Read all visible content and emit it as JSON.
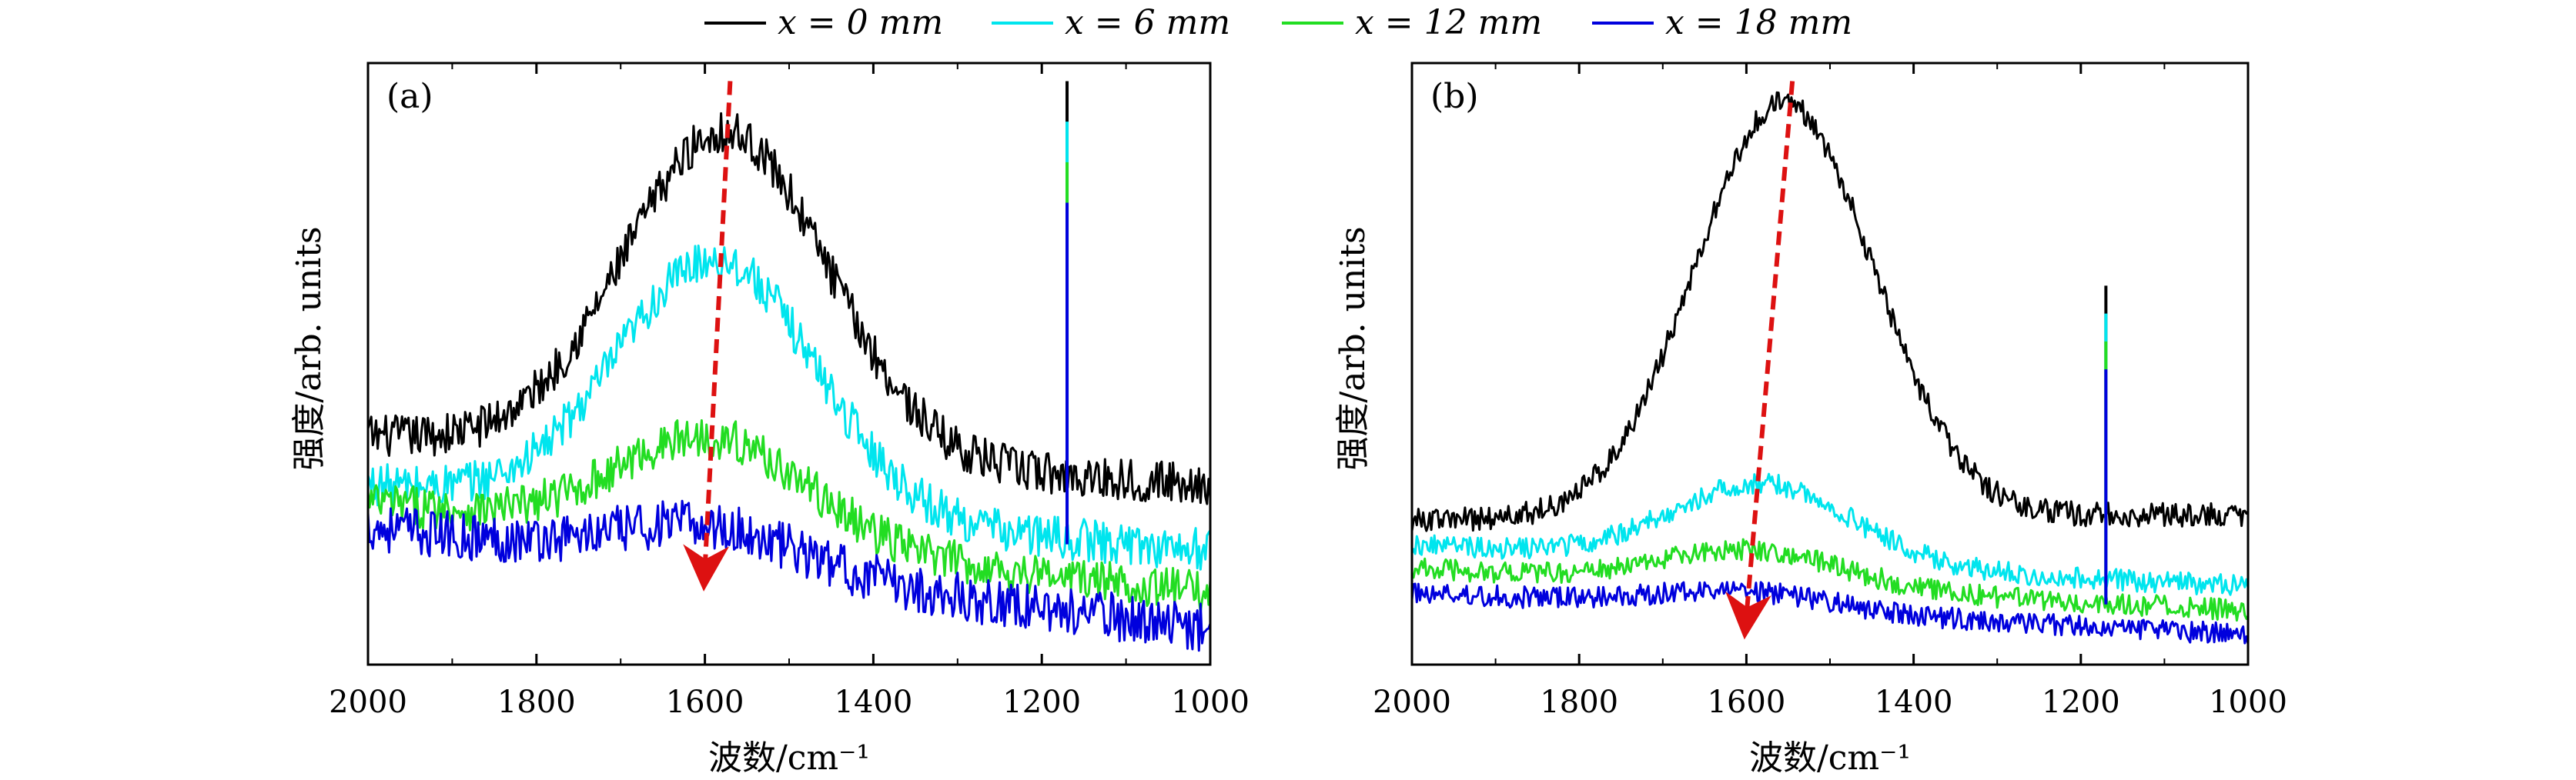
{
  "legend": [
    {
      "label": "x = 0 mm",
      "color": "#000000"
    },
    {
      "label": "x = 6 mm",
      "color": "#00e5ee"
    },
    {
      "label": "x = 12 mm",
      "color": "#22dd22"
    },
    {
      "label": "x = 18 mm",
      "color": "#0000dd"
    }
  ],
  "chart_data": [
    {
      "type": "line",
      "title": "(a)",
      "xlabel": "波数/cm⁻¹",
      "ylabel": "强度/arb. units",
      "xlim": [
        2000,
        1000
      ],
      "ylim": [
        0,
        1
      ],
      "xticks": [
        2000,
        1800,
        1600,
        1400,
        1200,
        1000
      ],
      "x_reversed": true,
      "arrow": {
        "from": [
          1570,
          0.97
        ],
        "to": [
          1600,
          0.16
        ],
        "color": "#dd1111"
      },
      "spike": {
        "x": 1170,
        "top": 0.97,
        "base": 0.2
      },
      "series": [
        {
          "name": "x = 0 mm",
          "color": "#000000",
          "baseline_start": 0.38,
          "baseline_end": 0.3,
          "peak": 0.92,
          "peak_x": 1575,
          "width": 170,
          "noise": 0.035
        },
        {
          "name": "x = 6 mm",
          "color": "#00e5ee",
          "baseline_start": 0.3,
          "baseline_end": 0.19,
          "peak": 0.72,
          "peak_x": 1585,
          "width": 165,
          "noise": 0.035
        },
        {
          "name": "x = 12 mm",
          "color": "#22dd22",
          "baseline_start": 0.27,
          "baseline_end": 0.12,
          "peak": 0.44,
          "peak_x": 1590,
          "width": 160,
          "noise": 0.035
        },
        {
          "name": "x = 18 mm",
          "color": "#0000dd",
          "baseline_start": 0.23,
          "baseline_end": 0.06,
          "peak": 0.3,
          "peak_x": 1595,
          "width": 160,
          "noise": 0.04
        }
      ]
    },
    {
      "type": "line",
      "title": "(b)",
      "xlabel": "波数/cm⁻¹",
      "ylabel": "强度/arb. units",
      "xlim": [
        2000,
        1000
      ],
      "ylim": [
        0,
        1
      ],
      "xticks": [
        2000,
        1800,
        1600,
        1400,
        1200,
        1000
      ],
      "x_reversed": true,
      "arrow": {
        "from": [
          1545,
          0.97
        ],
        "to": [
          1600,
          0.08
        ],
        "color": "#dd1111"
      },
      "spike": {
        "x": 1170,
        "top": 0.63,
        "base": 0.1
      },
      "series": [
        {
          "name": "x = 0 mm",
          "color": "#000000",
          "baseline_start": 0.24,
          "baseline_end": 0.25,
          "peak": 0.93,
          "peak_x": 1555,
          "width": 150,
          "noise": 0.02
        },
        {
          "name": "x = 6 mm",
          "color": "#00e5ee",
          "baseline_start": 0.2,
          "baseline_end": 0.13,
          "peak": 0.33,
          "peak_x": 1580,
          "width": 150,
          "noise": 0.018
        },
        {
          "name": "x = 12 mm",
          "color": "#22dd22",
          "baseline_start": 0.16,
          "baseline_end": 0.09,
          "peak": 0.22,
          "peak_x": 1590,
          "width": 150,
          "noise": 0.018
        },
        {
          "name": "x = 18 mm",
          "color": "#0000dd",
          "baseline_start": 0.12,
          "baseline_end": 0.05,
          "peak": 0.15,
          "peak_x": 1600,
          "width": 150,
          "noise": 0.018
        }
      ]
    }
  ]
}
